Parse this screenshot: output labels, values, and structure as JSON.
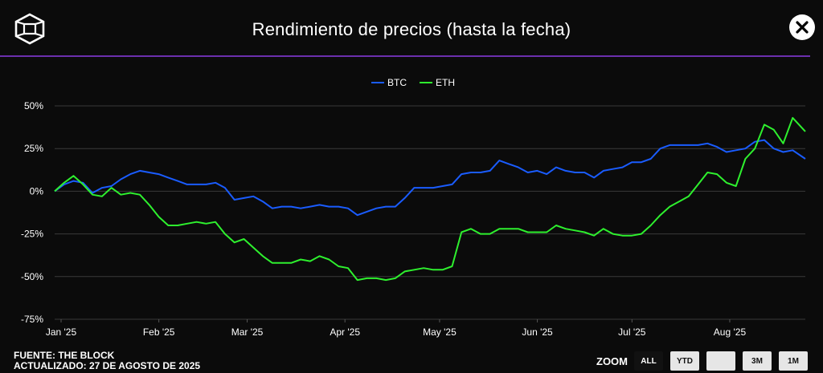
{
  "header": {
    "title": "Rendimiento de precios (hasta la fecha)"
  },
  "icons": {
    "logo": "cube-logo-icon",
    "close": "close-icon"
  },
  "footer": {
    "source": "FUENTE: THE BLOCK",
    "updated": "ACTUALIZADO: 27 DE AGOSTO DE 2025"
  },
  "zoom": {
    "label": "ZOOM",
    "buttons": [
      "ALL",
      "YTD",
      "",
      "3M",
      "1M"
    ],
    "selected": "ALL"
  },
  "colors": {
    "btc": "#1a5cff",
    "eth": "#2ef02e",
    "divider": "#6b2fae",
    "background": "#0b0b0b"
  },
  "chart_data": {
    "type": "line",
    "title": "Rendimiento de precios (hasta la fecha)",
    "xlabel": "",
    "ylabel": "",
    "x_ticks": [
      "Jan '25",
      "Feb '25",
      "Mar '25",
      "Apr '25",
      "May '25",
      "Jun '25",
      "Jul '25",
      "Aug '25"
    ],
    "y_ticks": [
      "50%",
      "25%",
      "0%",
      "-25%",
      "-50%",
      "-75%"
    ],
    "ylim": [
      -75,
      50
    ],
    "xlim": [
      "2025-01-01",
      "2025-08-27"
    ],
    "grid": true,
    "legend": "top-center",
    "series": [
      {
        "name": "BTC",
        "color": "#1a5cff",
        "points": [
          [
            "2025-01-01",
            0
          ],
          [
            "2025-01-04",
            4
          ],
          [
            "2025-01-07",
            6
          ],
          [
            "2025-01-10",
            5
          ],
          [
            "2025-01-13",
            -1
          ],
          [
            "2025-01-16",
            2
          ],
          [
            "2025-01-19",
            3
          ],
          [
            "2025-01-22",
            7
          ],
          [
            "2025-01-25",
            10
          ],
          [
            "2025-01-28",
            12
          ],
          [
            "2025-01-31",
            11
          ],
          [
            "2025-02-03",
            10
          ],
          [
            "2025-02-06",
            8
          ],
          [
            "2025-02-09",
            6
          ],
          [
            "2025-02-12",
            4
          ],
          [
            "2025-02-15",
            4
          ],
          [
            "2025-02-18",
            4
          ],
          [
            "2025-02-21",
            5
          ],
          [
            "2025-02-24",
            2
          ],
          [
            "2025-02-27",
            -5
          ],
          [
            "2025-03-02",
            -4
          ],
          [
            "2025-03-05",
            -3
          ],
          [
            "2025-03-08",
            -6
          ],
          [
            "2025-03-11",
            -10
          ],
          [
            "2025-03-14",
            -9
          ],
          [
            "2025-03-17",
            -9
          ],
          [
            "2025-03-20",
            -10
          ],
          [
            "2025-03-23",
            -9
          ],
          [
            "2025-03-26",
            -8
          ],
          [
            "2025-03-29",
            -9
          ],
          [
            "2025-04-01",
            -9
          ],
          [
            "2025-04-04",
            -10
          ],
          [
            "2025-04-07",
            -14
          ],
          [
            "2025-04-10",
            -12
          ],
          [
            "2025-04-13",
            -10
          ],
          [
            "2025-04-16",
            -9
          ],
          [
            "2025-04-19",
            -9
          ],
          [
            "2025-04-22",
            -4
          ],
          [
            "2025-04-25",
            2
          ],
          [
            "2025-04-28",
            2
          ],
          [
            "2025-05-01",
            2
          ],
          [
            "2025-05-04",
            3
          ],
          [
            "2025-05-07",
            4
          ],
          [
            "2025-05-10",
            10
          ],
          [
            "2025-05-13",
            11
          ],
          [
            "2025-05-16",
            11
          ],
          [
            "2025-05-19",
            12
          ],
          [
            "2025-05-22",
            18
          ],
          [
            "2025-05-25",
            16
          ],
          [
            "2025-05-28",
            14
          ],
          [
            "2025-05-31",
            11
          ],
          [
            "2025-06-03",
            12
          ],
          [
            "2025-06-06",
            10
          ],
          [
            "2025-06-09",
            14
          ],
          [
            "2025-06-12",
            12
          ],
          [
            "2025-06-15",
            11
          ],
          [
            "2025-06-18",
            11
          ],
          [
            "2025-06-21",
            8
          ],
          [
            "2025-06-24",
            12
          ],
          [
            "2025-06-27",
            13
          ],
          [
            "2025-06-30",
            14
          ],
          [
            "2025-07-03",
            17
          ],
          [
            "2025-07-06",
            17
          ],
          [
            "2025-07-09",
            19
          ],
          [
            "2025-07-12",
            25
          ],
          [
            "2025-07-15",
            27
          ],
          [
            "2025-07-18",
            27
          ],
          [
            "2025-07-21",
            27
          ],
          [
            "2025-07-24",
            27
          ],
          [
            "2025-07-27",
            28
          ],
          [
            "2025-07-30",
            26
          ],
          [
            "2025-08-02",
            23
          ],
          [
            "2025-08-05",
            24
          ],
          [
            "2025-08-08",
            25
          ],
          [
            "2025-08-11",
            29
          ],
          [
            "2025-08-14",
            30
          ],
          [
            "2025-08-17",
            25
          ],
          [
            "2025-08-20",
            23
          ],
          [
            "2025-08-23",
            24
          ],
          [
            "2025-08-27",
            19
          ]
        ]
      },
      {
        "name": "ETH",
        "color": "#2ef02e",
        "points": [
          [
            "2025-01-01",
            0
          ],
          [
            "2025-01-04",
            5
          ],
          [
            "2025-01-07",
            9
          ],
          [
            "2025-01-10",
            4
          ],
          [
            "2025-01-13",
            -2
          ],
          [
            "2025-01-16",
            -3
          ],
          [
            "2025-01-19",
            2
          ],
          [
            "2025-01-22",
            -2
          ],
          [
            "2025-01-25",
            -1
          ],
          [
            "2025-01-28",
            -2
          ],
          [
            "2025-01-31",
            -8
          ],
          [
            "2025-02-03",
            -15
          ],
          [
            "2025-02-06",
            -20
          ],
          [
            "2025-02-09",
            -20
          ],
          [
            "2025-02-12",
            -19
          ],
          [
            "2025-02-15",
            -18
          ],
          [
            "2025-02-18",
            -19
          ],
          [
            "2025-02-21",
            -18
          ],
          [
            "2025-02-24",
            -25
          ],
          [
            "2025-02-27",
            -30
          ],
          [
            "2025-03-02",
            -28
          ],
          [
            "2025-03-05",
            -33
          ],
          [
            "2025-03-08",
            -38
          ],
          [
            "2025-03-11",
            -42
          ],
          [
            "2025-03-14",
            -42
          ],
          [
            "2025-03-17",
            -42
          ],
          [
            "2025-03-20",
            -40
          ],
          [
            "2025-03-23",
            -41
          ],
          [
            "2025-03-26",
            -38
          ],
          [
            "2025-03-29",
            -40
          ],
          [
            "2025-04-01",
            -44
          ],
          [
            "2025-04-04",
            -45
          ],
          [
            "2025-04-07",
            -52
          ],
          [
            "2025-04-10",
            -51
          ],
          [
            "2025-04-13",
            -51
          ],
          [
            "2025-04-16",
            -52
          ],
          [
            "2025-04-19",
            -51
          ],
          [
            "2025-04-22",
            -47
          ],
          [
            "2025-04-25",
            -46
          ],
          [
            "2025-04-28",
            -45
          ],
          [
            "2025-05-01",
            -46
          ],
          [
            "2025-05-04",
            -46
          ],
          [
            "2025-05-07",
            -44
          ],
          [
            "2025-05-10",
            -24
          ],
          [
            "2025-05-13",
            -22
          ],
          [
            "2025-05-16",
            -25
          ],
          [
            "2025-05-19",
            -25
          ],
          [
            "2025-05-22",
            -22
          ],
          [
            "2025-05-25",
            -22
          ],
          [
            "2025-05-28",
            -22
          ],
          [
            "2025-05-31",
            -24
          ],
          [
            "2025-06-03",
            -24
          ],
          [
            "2025-06-06",
            -24
          ],
          [
            "2025-06-09",
            -20
          ],
          [
            "2025-06-12",
            -22
          ],
          [
            "2025-06-15",
            -23
          ],
          [
            "2025-06-18",
            -24
          ],
          [
            "2025-06-21",
            -26
          ],
          [
            "2025-06-24",
            -22
          ],
          [
            "2025-06-27",
            -25
          ],
          [
            "2025-06-30",
            -26
          ],
          [
            "2025-07-03",
            -26
          ],
          [
            "2025-07-06",
            -25
          ],
          [
            "2025-07-09",
            -20
          ],
          [
            "2025-07-12",
            -14
          ],
          [
            "2025-07-15",
            -9
          ],
          [
            "2025-07-18",
            -6
          ],
          [
            "2025-07-21",
            -3
          ],
          [
            "2025-07-24",
            4
          ],
          [
            "2025-07-27",
            11
          ],
          [
            "2025-07-30",
            10
          ],
          [
            "2025-08-02",
            5
          ],
          [
            "2025-08-05",
            3
          ],
          [
            "2025-08-08",
            19
          ],
          [
            "2025-08-11",
            25
          ],
          [
            "2025-08-14",
            39
          ],
          [
            "2025-08-17",
            36
          ],
          [
            "2025-08-20",
            28
          ],
          [
            "2025-08-23",
            43
          ],
          [
            "2025-08-27",
            35
          ]
        ]
      }
    ]
  }
}
